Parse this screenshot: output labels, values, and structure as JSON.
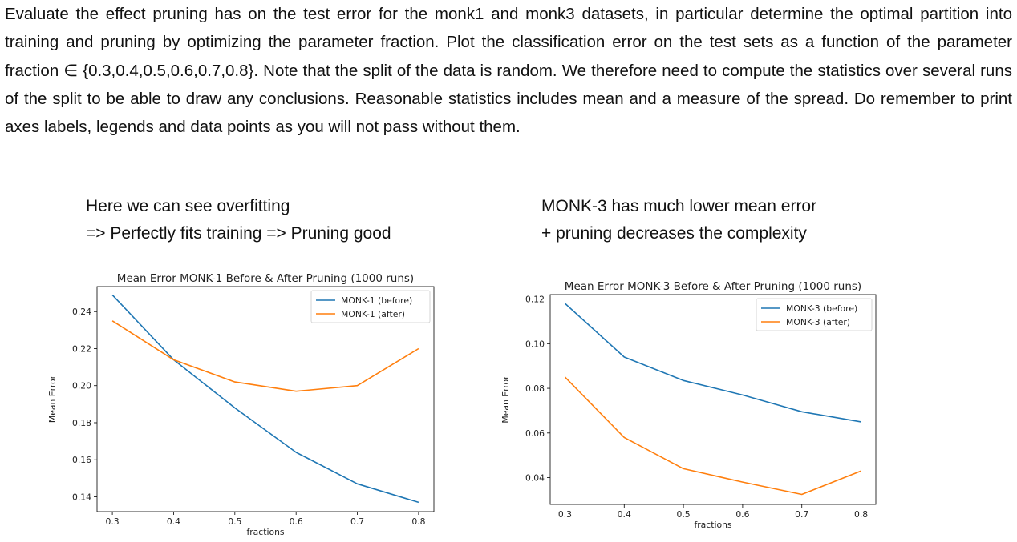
{
  "intro_text": "Evaluate the effect pruning has on the test error for the monk1 and monk3 datasets, in particular determine the optimal partition into training and pruning by optimizing the parameter fraction. Plot the classification error on the test sets as a function of the parameter fraction ∈ {0.3,0.4,0.5,0.6,0.7,0.8}. Note that the split of the data is random. We therefore need to compute the statistics over several runs of the split to be able to draw any conclusions. Reasonable statistics includes mean and a measure of the spread. Do remember to print axes labels, legends and data points as you will not pass without them.",
  "notes": {
    "left": [
      "Here we can see overfitting",
      "=> Perfectly fits training => Pruning good"
    ],
    "right": [
      "MONK-3 has much lower mean error",
      "+ pruning decreases the complexity"
    ]
  },
  "colors": {
    "before": "#1f77b4",
    "after": "#ff7f0e"
  },
  "chart_data": [
    {
      "type": "line",
      "title": "Mean Error MONK-1 Before & After Pruning (1000 runs)",
      "xlabel": "fractions",
      "ylabel": "Mean Error",
      "x": [
        0.3,
        0.4,
        0.5,
        0.6,
        0.7,
        0.8
      ],
      "xlim": [
        0.275,
        0.825
      ],
      "ylim": [
        0.132,
        0.2535
      ],
      "xticks": [
        "0.3",
        "0.4",
        "0.5",
        "0.6",
        "0.7",
        "0.8"
      ],
      "yticks": [
        0.14,
        0.16,
        0.18,
        0.2,
        0.22,
        0.24
      ],
      "ytick_labels": [
        "0.14",
        "0.16",
        "0.18",
        "0.20",
        "0.22",
        "0.24"
      ],
      "legend": "top-right",
      "grid": false,
      "series": [
        {
          "name": "MONK-1 (before)",
          "values": [
            0.249,
            0.214,
            0.188,
            0.164,
            0.147,
            0.137
          ]
        },
        {
          "name": "MONK-1 (after)",
          "values": [
            0.235,
            0.214,
            0.202,
            0.197,
            0.2,
            0.22
          ]
        }
      ]
    },
    {
      "type": "line",
      "title": "Mean Error MONK-3 Before & After Pruning (1000 runs)",
      "xlabel": "fractions",
      "ylabel": "Mean Error",
      "x": [
        0.3,
        0.4,
        0.5,
        0.6,
        0.7,
        0.8
      ],
      "xlim": [
        0.275,
        0.825
      ],
      "ylim": [
        0.028,
        0.122
      ],
      "xticks": [
        "0.3",
        "0.4",
        "0.5",
        "0.6",
        "0.7",
        "0.8"
      ],
      "yticks": [
        0.04,
        0.06,
        0.08,
        0.1,
        0.12
      ],
      "ytick_labels": [
        "0.04",
        "0.06",
        "0.08",
        "0.10",
        "0.12"
      ],
      "legend": "top-right",
      "grid": false,
      "series": [
        {
          "name": "MONK-3 (before)",
          "values": [
            0.118,
            0.094,
            0.0835,
            0.077,
            0.0695,
            0.065
          ]
        },
        {
          "name": "MONK-3 (after)",
          "values": [
            0.085,
            0.058,
            0.044,
            0.038,
            0.0325,
            0.043
          ]
        }
      ]
    }
  ]
}
